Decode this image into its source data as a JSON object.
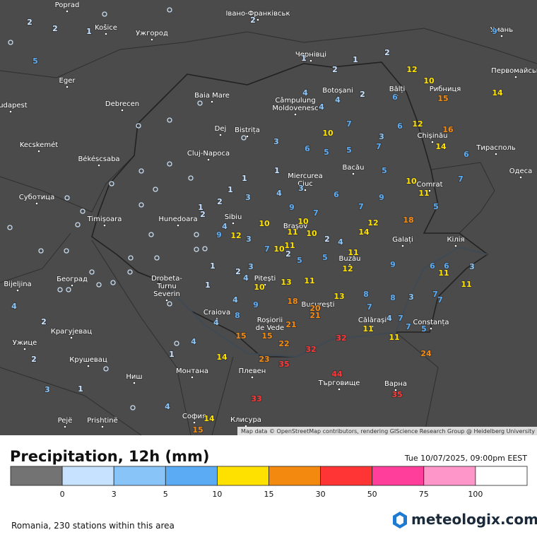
{
  "legend": {
    "title": "Precipitation, 12h (mm)",
    "date": "Tue 10/07/2025, 09:00pm EEST",
    "ticks": [
      0,
      3,
      5,
      10,
      15,
      30,
      50,
      75,
      100
    ],
    "colors": [
      "#737373",
      "#c6e2ff",
      "#89c4f8",
      "#5aabf4",
      "#ffe100",
      "#f4890f",
      "#ff3535",
      "#ff3d9a",
      "#ff96c9",
      "#ffffff"
    ]
  },
  "attribution": "Map data © OpenStreetMap contributors, rendering GIScience Research Group @ Heidelberg University",
  "footer": "Romania, 230 stations within this area",
  "logo": "meteologix.com",
  "cities": [
    {
      "lines": [
        "Poprad"
      ]
    },
    {
      "lines": [
        "Košice"
      ]
    },
    {
      "lines": [
        "Ужгород"
      ]
    },
    {
      "lines": [
        "Івано-Франківськ"
      ]
    },
    {
      "lines": [
        "Чернівці"
      ]
    },
    {
      "lines": [
        "Умань"
      ]
    },
    {
      "lines": [
        "Первомайськ"
      ]
    },
    {
      "lines": [
        "Eger"
      ]
    },
    {
      "lines": [
        "Debrecen"
      ]
    },
    {
      "lines": [
        "Budapest"
      ]
    },
    {
      "lines": [
        "Baia Mare"
      ]
    },
    {
      "lines": [
        "Câmpulung",
        "Moldovenesc"
      ]
    },
    {
      "lines": [
        "Botoșani"
      ]
    },
    {
      "lines": [
        "Bălți"
      ]
    },
    {
      "lines": [
        "Рибниця"
      ]
    },
    {
      "lines": [
        "Dej"
      ]
    },
    {
      "lines": [
        "Bistrița"
      ]
    },
    {
      "lines": [
        "Kecskemét"
      ]
    },
    {
      "lines": [
        "Cluj-Napoca"
      ]
    },
    {
      "lines": [
        "Békéscsaba"
      ]
    },
    {
      "lines": [
        "Chișinău"
      ]
    },
    {
      "lines": [
        "Тирасполь"
      ]
    },
    {
      "lines": [
        "Miercurea",
        "Ciuc"
      ]
    },
    {
      "lines": [
        "Bacău"
      ]
    },
    {
      "lines": [
        "Одеса"
      ]
    },
    {
      "lines": [
        "Суботица"
      ]
    },
    {
      "lines": [
        "Comrat"
      ]
    },
    {
      "lines": [
        "Timișoara"
      ]
    },
    {
      "lines": [
        "Hunedoara"
      ]
    },
    {
      "lines": [
        "Sibiu"
      ]
    },
    {
      "lines": [
        "Brașov"
      ]
    },
    {
      "lines": [
        "Galați"
      ]
    },
    {
      "lines": [
        "Кілія"
      ]
    },
    {
      "lines": [
        "Buzău"
      ]
    },
    {
      "lines": [
        "Београд"
      ]
    },
    {
      "lines": [
        "Bijeljina"
      ]
    },
    {
      "lines": [
        "Drobeta-",
        "Turnu",
        "Severin"
      ]
    },
    {
      "lines": [
        "Pitești"
      ]
    },
    {
      "lines": [
        "București"
      ]
    },
    {
      "lines": [
        "Craiova"
      ]
    },
    {
      "lines": [
        "Roșiorii",
        "de Vede"
      ]
    },
    {
      "lines": [
        "Călărași"
      ]
    },
    {
      "lines": [
        "Constanța"
      ]
    },
    {
      "lines": [
        "Крагујевац"
      ]
    },
    {
      "lines": [
        "Ужице"
      ]
    },
    {
      "lines": [
        "Крушевац"
      ]
    },
    {
      "lines": [
        "Монтана"
      ]
    },
    {
      "lines": [
        "Плевен"
      ]
    },
    {
      "lines": [
        "Търговище"
      ]
    },
    {
      "lines": [
        "Варна"
      ]
    },
    {
      "lines": [
        "Ниш"
      ]
    },
    {
      "lines": [
        "Pejë"
      ]
    },
    {
      "lines": [
        "Prishtinë"
      ]
    },
    {
      "lines": [
        "София"
      ]
    },
    {
      "lines": [
        "Клисура"
      ]
    }
  ],
  "stations": [
    {
      "value": 2
    },
    {
      "value": 2
    },
    {
      "value": 1
    },
    {
      "value": 5
    },
    {
      "value": 2
    },
    {
      "value": 1
    },
    {
      "value": 2
    },
    {
      "value": 1
    },
    {
      "value": 2
    },
    {
      "value": 12
    },
    {
      "value": 10
    },
    {
      "value": 4
    },
    {
      "value": 2
    },
    {
      "value": 4
    },
    {
      "value": 6
    },
    {
      "value": 15
    },
    {
      "value": 14
    },
    {
      "value": 9
    },
    {
      "value": 4
    },
    {
      "value": 10
    },
    {
      "value": 7
    },
    {
      "value": 6
    },
    {
      "value": 12
    },
    {
      "value": 16
    },
    {
      "value": 14
    },
    {
      "value": 6
    },
    {
      "value": 3
    },
    {
      "value": 6
    },
    {
      "value": 5
    },
    {
      "value": 5
    },
    {
      "value": 3
    },
    {
      "value": 7
    },
    {
      "value": 1
    },
    {
      "value": 5
    },
    {
      "value": 3
    },
    {
      "value": 4
    },
    {
      "value": 6
    },
    {
      "value": 9
    },
    {
      "value": 1
    },
    {
      "value": 1
    },
    {
      "value": 2
    },
    {
      "value": 3
    },
    {
      "value": 10
    },
    {
      "value": 11
    },
    {
      "value": 5
    },
    {
      "value": 7
    },
    {
      "value": 2
    },
    {
      "value": 1
    },
    {
      "value": 9
    },
    {
      "value": 7
    },
    {
      "value": 7
    },
    {
      "value": 10
    },
    {
      "value": 10
    },
    {
      "value": 12
    },
    {
      "value": 18
    },
    {
      "value": 14
    },
    {
      "value": 9
    },
    {
      "value": 12
    },
    {
      "value": 4
    },
    {
      "value": 3
    },
    {
      "value": 10
    },
    {
      "value": 11
    },
    {
      "value": 2
    },
    {
      "value": 4
    },
    {
      "value": 2
    },
    {
      "value": 7
    },
    {
      "value": 10
    },
    {
      "value": 11
    },
    {
      "value": 5
    },
    {
      "value": 5
    },
    {
      "value": 11
    },
    {
      "value": 12
    },
    {
      "value": 9
    },
    {
      "value": 6
    },
    {
      "value": 6
    },
    {
      "value": 11
    },
    {
      "value": 3
    },
    {
      "value": 1
    },
    {
      "value": 2
    },
    {
      "value": 3
    },
    {
      "value": 4
    },
    {
      "value": 10
    },
    {
      "value": 13
    },
    {
      "value": 11
    },
    {
      "value": 1
    },
    {
      "value": 4
    },
    {
      "value": 9
    },
    {
      "value": 13
    },
    {
      "value": 8
    },
    {
      "value": 8
    },
    {
      "value": 3
    },
    {
      "value": 7
    },
    {
      "value": 7
    },
    {
      "value": 11
    },
    {
      "value": 18
    },
    {
      "value": 20
    },
    {
      "value": 21
    },
    {
      "value": 7
    },
    {
      "value": 4
    },
    {
      "value": 7
    },
    {
      "value": 7
    },
    {
      "value": 11
    },
    {
      "value": 11
    },
    {
      "value": 5
    },
    {
      "value": 8
    },
    {
      "value": 4
    },
    {
      "value": 15
    },
    {
      "value": 15
    },
    {
      "value": 21
    },
    {
      "value": 22
    },
    {
      "value": 32
    },
    {
      "value": 32
    },
    {
      "value": 24
    },
    {
      "value": 4
    },
    {
      "value": 1
    },
    {
      "value": 14
    },
    {
      "value": 23
    },
    {
      "value": 35
    },
    {
      "value": 44
    },
    {
      "value": 33
    },
    {
      "value": 35
    },
    {
      "value": 4
    },
    {
      "value": 2
    },
    {
      "value": 2
    },
    {
      "value": 3
    },
    {
      "value": 1
    },
    {
      "value": 4
    },
    {
      "value": 14
    },
    {
      "value": 15
    },
    {
      "value": 0
    },
    {
      "value": 0
    },
    {
      "value": 0
    },
    {
      "value": 0
    },
    {
      "value": 0
    },
    {
      "value": 0
    },
    {
      "value": 0
    },
    {
      "value": 0
    },
    {
      "value": 0
    },
    {
      "value": 0
    },
    {
      "value": 0
    },
    {
      "value": 0
    },
    {
      "value": 0
    },
    {
      "value": 0
    },
    {
      "value": 0
    },
    {
      "value": 0
    },
    {
      "value": 0
    },
    {
      "value": 0
    },
    {
      "value": 0
    },
    {
      "value": 0
    },
    {
      "value": 0
    },
    {
      "value": 0
    },
    {
      "value": 0
    },
    {
      "value": 0
    },
    {
      "value": 0
    },
    {
      "value": 0
    },
    {
      "value": 0
    },
    {
      "value": 0
    },
    {
      "value": 0
    },
    {
      "value": 0
    },
    {
      "value": 0
    },
    {
      "value": 0
    },
    {
      "value": 0
    },
    {
      "value": 0
    },
    {
      "value": 0
    }
  ]
}
